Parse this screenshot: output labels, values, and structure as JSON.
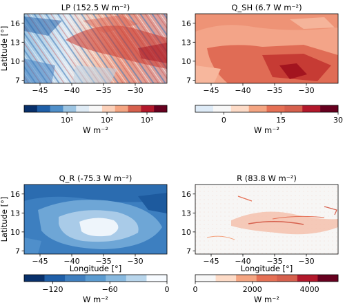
{
  "chart_data": [
    {
      "type": "heatmap",
      "title": "LP (152.5 W m⁻²)",
      "xlabel": "",
      "ylabel": "Latitude [°]",
      "xticks": [
        -45,
        -40,
        -35,
        -30
      ],
      "yticks": [
        7,
        10,
        13,
        16
      ],
      "xlim": [
        -47.5,
        -25
      ],
      "ylim": [
        6.5,
        17.5
      ],
      "colorbar": {
        "scale": "log",
        "tick_labels": [
          "10¹",
          "10²",
          "10³"
        ],
        "label": "W m⁻²",
        "colors": [
          "#08306b",
          "#1f5fa8",
          "#4f8fc9",
          "#9cc4e2",
          "#dfebf5",
          "#f7f7f7",
          "#fbd0b9",
          "#f4a582",
          "#d6604d",
          "#b2182b",
          "#67001f"
        ]
      }
    },
    {
      "type": "heatmap",
      "title": "Q_SH (6.7 W m⁻²)",
      "xlabel": "",
      "ylabel": "",
      "xticks": [
        -45,
        -40,
        -35,
        -30
      ],
      "yticks": [
        7,
        10,
        13,
        16
      ],
      "xlim": [
        -47.5,
        -25
      ],
      "ylim": [
        6.5,
        17.5
      ],
      "colorbar": {
        "min": -7.5,
        "max": 30,
        "ticks": [
          0,
          15,
          30
        ],
        "label": "W m⁻²",
        "colors": [
          "#deebf7",
          "#f7f7f7",
          "#fddbc7",
          "#f4a582",
          "#e57055",
          "#d6604d",
          "#b2182b",
          "#67001f"
        ]
      }
    },
    {
      "type": "heatmap",
      "title": "Q_R (-75.3 W m⁻²)",
      "xlabel": "Longitude [°]",
      "ylabel": "Latitude [°]",
      "xticks": [
        -45,
        -40,
        -35,
        -30
      ],
      "yticks": [
        7,
        10,
        13,
        16
      ],
      "xlim": [
        -47.5,
        -25
      ],
      "ylim": [
        6.5,
        17.5
      ],
      "colorbar": {
        "min": -150,
        "max": 0,
        "ticks": [
          -120,
          -60,
          0
        ],
        "label": "W m⁻²",
        "colors": [
          "#08306b",
          "#1f5fa8",
          "#3f7fbf",
          "#5b9bd0",
          "#88b9df",
          "#b9d6ec",
          "#f7fbff"
        ]
      }
    },
    {
      "type": "heatmap",
      "title": "R (83.8 W m⁻²)",
      "xlabel": "Longitude [°]",
      "ylabel": "",
      "xticks": [
        -45,
        -40,
        -35,
        -30
      ],
      "yticks": [
        7,
        10,
        13,
        16
      ],
      "xlim": [
        -47.5,
        -25
      ],
      "ylim": [
        6.5,
        17.5
      ],
      "colorbar": {
        "min": 0,
        "max": 5000,
        "ticks": [
          0,
          2000,
          4000
        ],
        "label": "W m⁻²",
        "colors": [
          "#f7f7f7",
          "#fddbc7",
          "#f4a582",
          "#e57055",
          "#d6604d",
          "#b2182b",
          "#67001f"
        ]
      }
    }
  ]
}
